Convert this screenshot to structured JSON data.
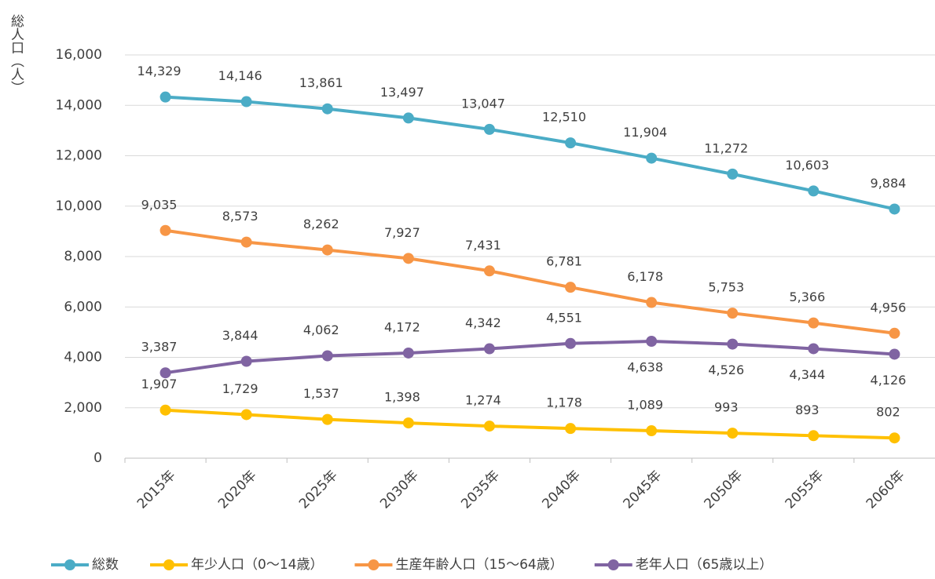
{
  "chart_data": {
    "type": "line",
    "y_label": "総人口（人）",
    "categories": [
      "2015年",
      "2020年",
      "2025年",
      "2030年",
      "2035年",
      "2040年",
      "2045年",
      "2050年",
      "2055年",
      "2060年"
    ],
    "ylim": [
      0,
      16000
    ],
    "yticks": [
      0,
      {
        "value": 2000,
        "label": "2,000"
      },
      {
        "value": 4000,
        "label": "4,000"
      },
      {
        "value": 6000,
        "label": "6,000"
      },
      {
        "value": 8000,
        "label": "8,000"
      },
      {
        "value": 10000,
        "label": "10,000"
      },
      {
        "value": 12000,
        "label": "12,000"
      },
      {
        "value": 14000,
        "label": "14,000"
      },
      {
        "value": 16000,
        "label": "16,000"
      }
    ],
    "grid": true,
    "series": [
      {
        "name": "総数",
        "color": "#4bacc6",
        "values": [
          14329,
          14146,
          13861,
          13497,
          13047,
          12510,
          11904,
          11272,
          10603,
          9884
        ],
        "value_labels": [
          "14,329",
          "14,146",
          "13,861",
          "13,497",
          "13,047",
          "12,510",
          "11,904",
          "11,272",
          "10,603",
          "9,884"
        ]
      },
      {
        "name": "年少人口（0～14歳）",
        "color": "#ffc000",
        "values": [
          1907,
          1729,
          1537,
          1398,
          1274,
          1178,
          1089,
          993,
          893,
          802
        ],
        "value_labels": [
          "1,907",
          "1,729",
          "1,537",
          "1,398",
          "1,274",
          "1,178",
          "1,089",
          "993",
          "893",
          "802"
        ]
      },
      {
        "name": "生産年齢人口（15～64歳）",
        "color": "#f79646",
        "values": [
          9035,
          8573,
          8262,
          7927,
          7431,
          6781,
          6178,
          5753,
          5366,
          4956
        ],
        "value_labels": [
          "9,035",
          "8,573",
          "8,262",
          "7,927",
          "7,431",
          "6,781",
          "6,178",
          "5,753",
          "5,366",
          "4,956"
        ]
      },
      {
        "name": "老年人口（65歳以上）",
        "color": "#8064a2",
        "values": [
          3387,
          3844,
          4062,
          4172,
          4342,
          4551,
          4638,
          4526,
          4344,
          4126
        ],
        "value_labels": [
          "3,387",
          "3,844",
          "4,062",
          "4,172",
          "4,342",
          "4,551",
          "4,638",
          "4,526",
          "4,344",
          "4,126"
        ]
      }
    ]
  }
}
